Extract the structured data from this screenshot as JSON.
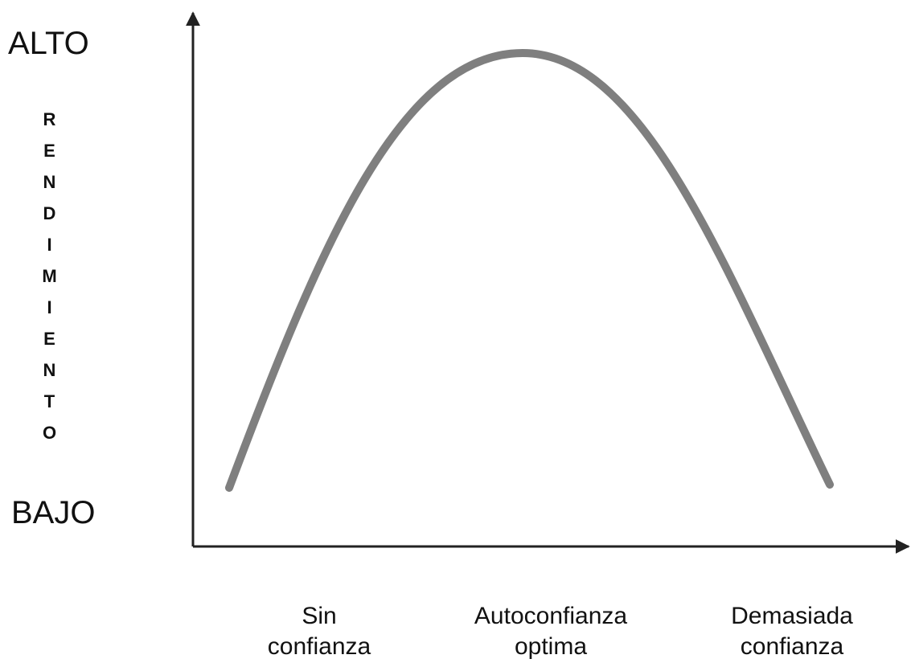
{
  "y_axis": {
    "high_label": "ALTO",
    "low_label": "BAJO",
    "title": "RENDIMIENTO"
  },
  "x_axis": {
    "labels": [
      "Sin confianza",
      "Autoconfianza optima",
      "Demasiada confianza"
    ]
  }
}
